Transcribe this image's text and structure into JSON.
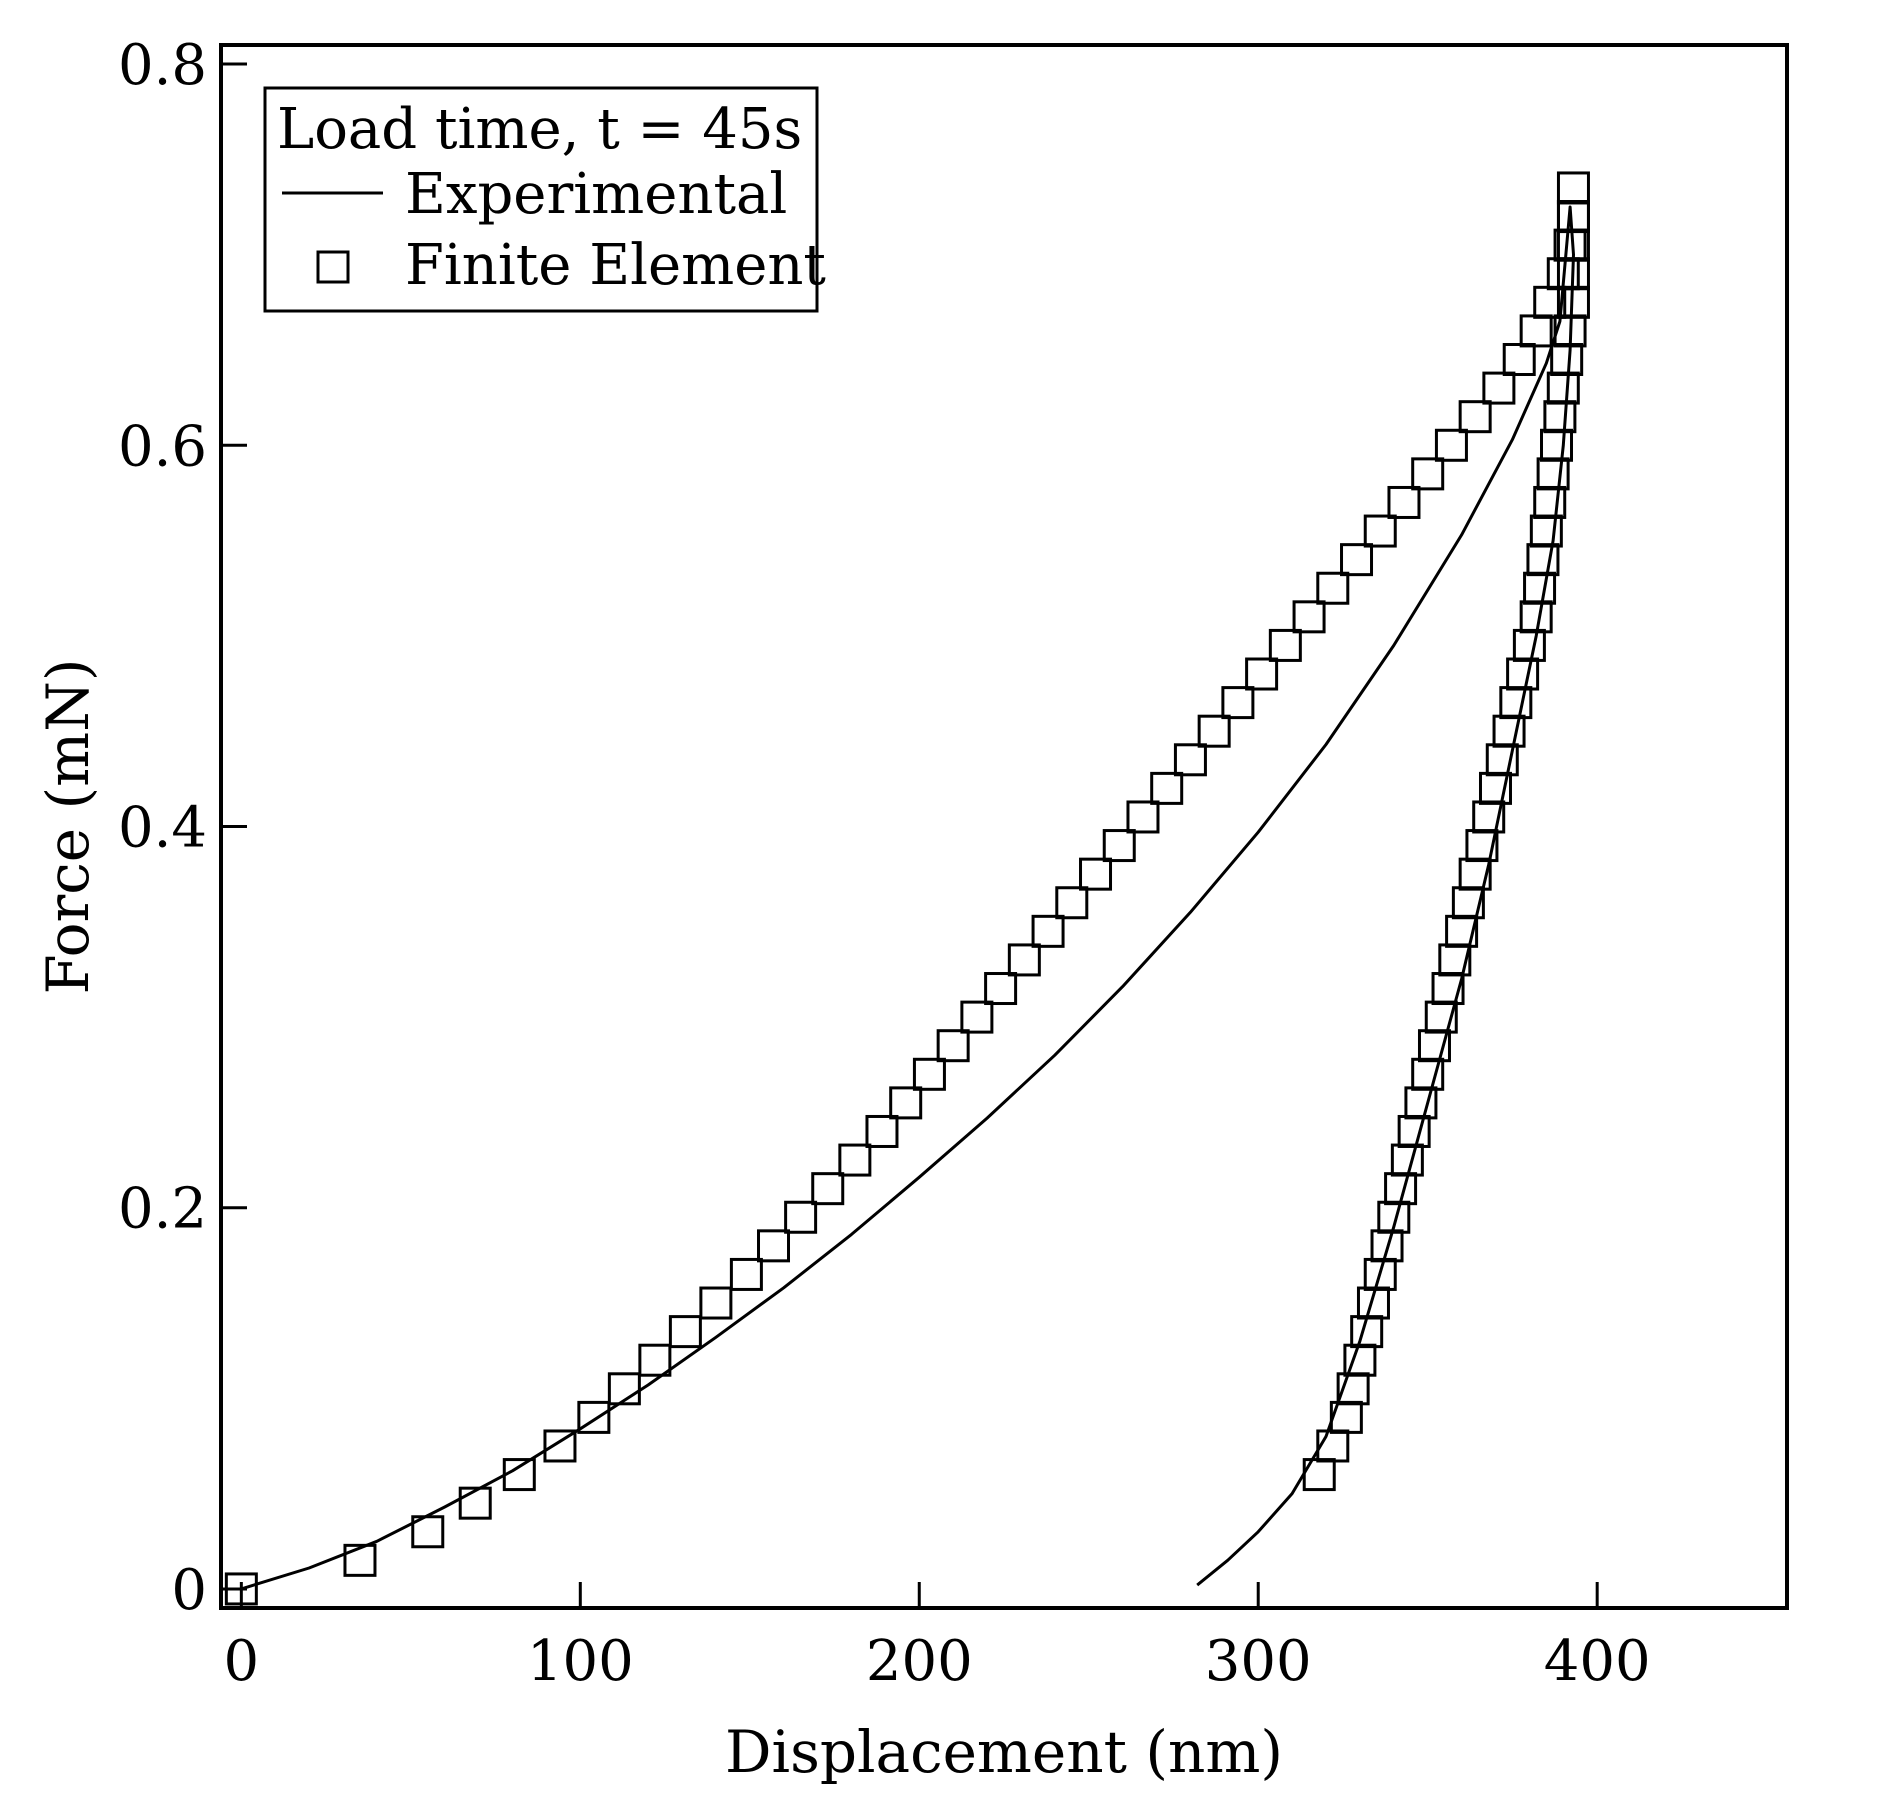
{
  "chart_data": {
    "type": "scatter",
    "title": "",
    "xlabel": "Displacement (nm)",
    "ylabel": "Force (mN)",
    "xlim": [
      -6,
      456
    ],
    "ylim": [
      -0.01,
      0.81
    ],
    "x_ticks": [
      0,
      100,
      200,
      300,
      400
    ],
    "x_tick_labels": [
      "0",
      "100",
      "200",
      "300",
      "400"
    ],
    "y_ticks": [
      0,
      0.2,
      0.4,
      0.6,
      0.8
    ],
    "y_tick_labels": [
      "0",
      "0.2",
      "0.4",
      "0.6",
      "0.8"
    ],
    "legend": {
      "title": "Load time, t = 45s",
      "position": "top-left",
      "entries": [
        {
          "label": "Experimental",
          "marker": "line"
        },
        {
          "label": "Finite Element",
          "marker": "square"
        }
      ]
    },
    "series": [
      {
        "name": "Experimental",
        "style": "line",
        "x": [
          0,
          20,
          40,
          60,
          80,
          100,
          120,
          140,
          160,
          180,
          200,
          220,
          240,
          260,
          280,
          300,
          320,
          340,
          360,
          375,
          385,
          389,
          392,
          393,
          392,
          390,
          387,
          382,
          375,
          368,
          360,
          350,
          340,
          330,
          320,
          310,
          300,
          291,
          282
        ],
        "y": [
          0,
          0.011,
          0.025,
          0.043,
          0.062,
          0.084,
          0.107,
          0.132,
          0.158,
          0.186,
          0.216,
          0.247,
          0.28,
          0.316,
          0.355,
          0.397,
          0.443,
          0.495,
          0.553,
          0.603,
          0.643,
          0.665,
          0.725,
          0.7,
          0.65,
          0.6,
          0.55,
          0.5,
          0.44,
          0.38,
          0.32,
          0.255,
          0.19,
          0.13,
          0.08,
          0.05,
          0.03,
          0.015,
          0.002
        ]
      },
      {
        "name": "Finite Element",
        "style": "square",
        "x": [
          0,
          35,
          55,
          69,
          82,
          94,
          104,
          113,
          122,
          131,
          140,
          149,
          157,
          165,
          173,
          181,
          189,
          196,
          203,
          210,
          217,
          224,
          231,
          238,
          245,
          252,
          259,
          266,
          273,
          280,
          287,
          294,
          301,
          308,
          315,
          322,
          329,
          336,
          343,
          350,
          357,
          364,
          371,
          377,
          382,
          386,
          390,
          392,
          393,
          393,
          393,
          393,
          393,
          393,
          392,
          391,
          390,
          389,
          388,
          387,
          386,
          385,
          384,
          383,
          382,
          380,
          378,
          376,
          374,
          372,
          370,
          368,
          366,
          364,
          362,
          360,
          358,
          356,
          354,
          352,
          350,
          348,
          346,
          344,
          342,
          340,
          338,
          336,
          334,
          332,
          330,
          328,
          326,
          322,
          318
        ],
        "y": [
          0,
          0.015,
          0.03,
          0.045,
          0.06,
          0.075,
          0.09,
          0.105,
          0.12,
          0.135,
          0.15,
          0.165,
          0.18,
          0.195,
          0.21,
          0.225,
          0.24,
          0.255,
          0.27,
          0.285,
          0.3,
          0.315,
          0.33,
          0.345,
          0.36,
          0.375,
          0.39,
          0.405,
          0.42,
          0.435,
          0.45,
          0.465,
          0.48,
          0.495,
          0.51,
          0.525,
          0.54,
          0.555,
          0.57,
          0.585,
          0.6,
          0.615,
          0.63,
          0.645,
          0.66,
          0.675,
          0.69,
          0.705,
          0.72,
          0.735,
          0.72,
          0.705,
          0.69,
          0.675,
          0.66,
          0.645,
          0.63,
          0.615,
          0.6,
          0.585,
          0.57,
          0.555,
          0.54,
          0.525,
          0.51,
          0.495,
          0.48,
          0.465,
          0.45,
          0.435,
          0.42,
          0.405,
          0.39,
          0.375,
          0.36,
          0.345,
          0.33,
          0.315,
          0.3,
          0.285,
          0.27,
          0.255,
          0.24,
          0.225,
          0.21,
          0.195,
          0.18,
          0.165,
          0.15,
          0.135,
          0.12,
          0.105,
          0.09,
          0.075,
          0.06
        ]
      }
    ]
  }
}
